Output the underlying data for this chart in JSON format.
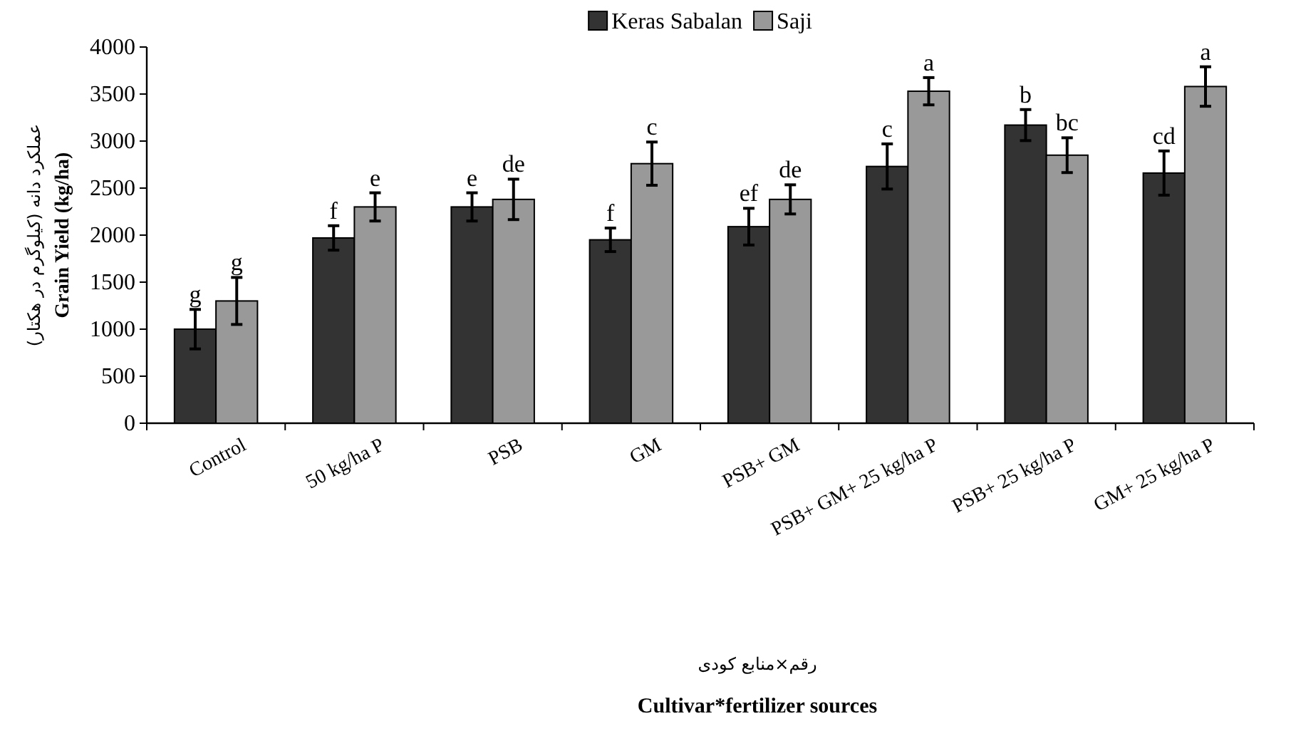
{
  "chart_data": {
    "type": "bar",
    "ylabel": "Grain Yield (kg/ha)",
    "annotations": [
      "عملکرد دانه (کیلوگرم در هکتار)",
      "رقم×منابع کودی",
      "Cultivar*fertilizer sources"
    ],
    "categories": [
      "Control",
      "50 kg/ha P",
      "PSB",
      "GM",
      "PSB+ GM",
      "PSB+ GM+ 25 kg/ha P",
      "PSB+ 25 kg/ha P",
      "GM+ 25 kg/ha P"
    ],
    "series": [
      {
        "name": "Keras Sabalan",
        "color": "#333333",
        "values": [
          1000,
          1970,
          2300,
          1950,
          2090,
          2730,
          3170,
          2660
        ],
        "errors": [
          210,
          130,
          150,
          125,
          195,
          240,
          165,
          235
        ],
        "value_labels": [
          "g",
          "f",
          "e",
          "f",
          "ef",
          "c",
          "b",
          "cd"
        ]
      },
      {
        "name": "Saji",
        "color": "#999999",
        "values": [
          1300,
          2300,
          2380,
          2760,
          2380,
          3530,
          2850,
          3580
        ],
        "errors": [
          250,
          150,
          215,
          230,
          155,
          145,
          185,
          210
        ],
        "value_labels": [
          "g",
          "e",
          "de",
          "c",
          "de",
          "a",
          "bc",
          "a"
        ]
      }
    ],
    "ylim": [
      0,
      4000
    ],
    "yticks": [
      0,
      500,
      1000,
      1500,
      2000,
      2500,
      3000,
      3500,
      4000
    ],
    "legend": "top",
    "grid": false
  }
}
